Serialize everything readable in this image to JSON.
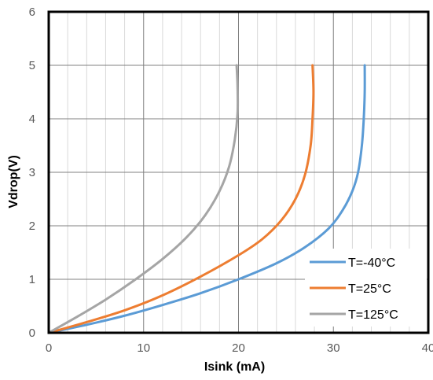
{
  "chart_data": {
    "type": "line",
    "title": "",
    "xlabel": "Isink (mA)",
    "ylabel": "Vdrop(V)",
    "xlim": [
      0,
      40
    ],
    "ylim": [
      0,
      6
    ],
    "x_major_ticks": [
      0,
      10,
      20,
      30,
      40
    ],
    "y_major_ticks": [
      0,
      1,
      2,
      3,
      4,
      5,
      6
    ],
    "x_minor_step": 2,
    "grid": true,
    "legend_position": "bottom-right",
    "series": [
      {
        "name": "T=-40°C",
        "color": "#5B9BD5",
        "points": [
          [
            0,
            0
          ],
          [
            4,
            0.15
          ],
          [
            8,
            0.32
          ],
          [
            12,
            0.52
          ],
          [
            16,
            0.74
          ],
          [
            20,
            1.0
          ],
          [
            24,
            1.3
          ],
          [
            27,
            1.6
          ],
          [
            29.5,
            1.95
          ],
          [
            31,
            2.3
          ],
          [
            32,
            2.65
          ],
          [
            32.6,
            3.0
          ],
          [
            33.0,
            3.5
          ],
          [
            33.2,
            4.0
          ],
          [
            33.3,
            4.5
          ],
          [
            33.3,
            5.0
          ]
        ]
      },
      {
        "name": "T=25°C",
        "color": "#ED7D31",
        "points": [
          [
            0,
            0
          ],
          [
            4,
            0.2
          ],
          [
            8,
            0.42
          ],
          [
            12,
            0.7
          ],
          [
            16,
            1.05
          ],
          [
            20,
            1.45
          ],
          [
            22.5,
            1.75
          ],
          [
            24.5,
            2.1
          ],
          [
            26,
            2.5
          ],
          [
            27,
            2.95
          ],
          [
            27.6,
            3.5
          ],
          [
            27.8,
            4.0
          ],
          [
            27.9,
            4.5
          ],
          [
            27.8,
            5.0
          ]
        ]
      },
      {
        "name": "T=125°C",
        "color": "#A5A5A5",
        "points": [
          [
            0,
            0
          ],
          [
            3,
            0.3
          ],
          [
            6,
            0.62
          ],
          [
            9,
            0.98
          ],
          [
            12,
            1.38
          ],
          [
            14.5,
            1.78
          ],
          [
            16.5,
            2.2
          ],
          [
            18,
            2.65
          ],
          [
            19,
            3.1
          ],
          [
            19.6,
            3.6
          ],
          [
            19.9,
            4.1
          ],
          [
            19.9,
            4.6
          ],
          [
            19.8,
            5.0
          ]
        ]
      }
    ]
  }
}
